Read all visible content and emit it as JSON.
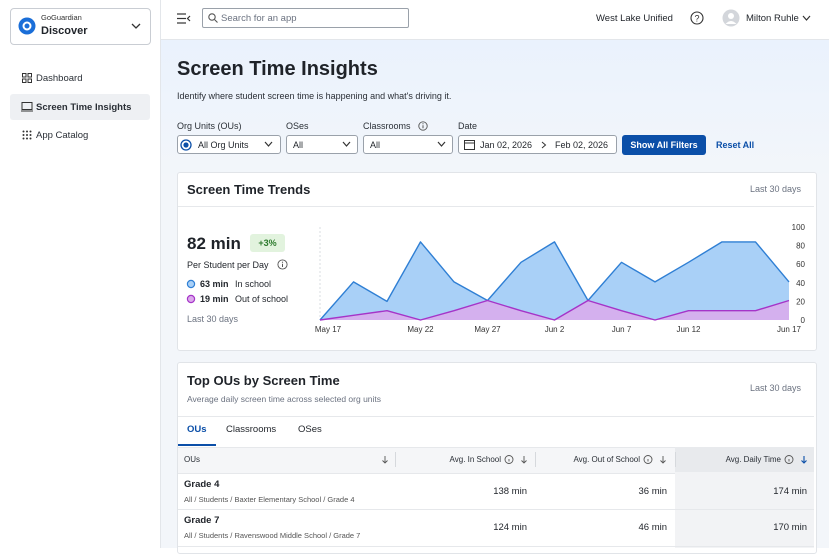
{
  "sidebar": {
    "brand": "GoGuardian",
    "product": "Discover",
    "nav": [
      "Dashboard",
      "Screen Time Insights",
      "App Catalog"
    ]
  },
  "topbar": {
    "search_placeholder": "Search for an app",
    "district": "West Lake Unified",
    "user": "Milton Ruhle"
  },
  "header": {
    "title": "Screen Time Insights",
    "subtitle": "Identify where student screen time is happening and what's driving it."
  },
  "filters": {
    "org_units": {
      "label": "Org Units (OUs)",
      "value": "All Org Units"
    },
    "oses": {
      "label": "OSes",
      "value": "All"
    },
    "classrooms": {
      "label": "Classrooms",
      "value": "All"
    },
    "date": {
      "label": "Date",
      "start": "Jan 02, 2026",
      "end": "Feb 02, 2026"
    },
    "show_all": "Show All Filters",
    "reset": "Reset All"
  },
  "trends": {
    "title": "Screen Time Trends",
    "period": "Last 30 days",
    "total": "82 min",
    "change": "+3%",
    "total_caption": "Per Student per Day",
    "in_school_value": "63 min",
    "out_school_value": "19 min",
    "footer": "Last 30 days"
  },
  "chart_data": {
    "type": "area",
    "categories": [
      "May 17",
      null,
      null,
      "May 22",
      null,
      "May 27",
      null,
      "Jun 2",
      null,
      "Jun 7",
      null,
      "Jun 12",
      null,
      null,
      "Jun 17"
    ],
    "series": [
      {
        "name": "In school",
        "color": "#2f7fd4",
        "fill": "#a9d0f7",
        "values": [
          0,
          41,
          20,
          84,
          41,
          21,
          62,
          84,
          21,
          62,
          41,
          62,
          84,
          84,
          41
        ]
      },
      {
        "name": "Out of school",
        "color": "#a534c8",
        "fill": "#dcaaec",
        "values": [
          0,
          5,
          10,
          0,
          10,
          21,
          10,
          0,
          21,
          10,
          0,
          10,
          10,
          10,
          21
        ]
      }
    ],
    "ylim": [
      0,
      100
    ],
    "yticks": [
      0,
      20,
      40,
      60,
      80,
      100
    ],
    "y_axis_side": "right",
    "grid": false
  },
  "top_ous": {
    "title": "Top OUs by Screen Time",
    "subtitle": "Average daily screen time across selected org units",
    "period": "Last 30 days",
    "tabs": [
      "OUs",
      "Classrooms",
      "OSes"
    ],
    "columns": [
      "OUs",
      "Avg. In School",
      "Avg. Out of School",
      "Avg. Daily Time"
    ],
    "rows": [
      {
        "name": "Grade 4",
        "path": "All / Students / Baxter Elementary School / Grade 4",
        "in_school": "138 min",
        "out_school": "36 min",
        "daily": "174 min"
      },
      {
        "name": "Grade 7",
        "path": "All / Students / Ravenswood Middle School / Grade 7",
        "in_school": "124 min",
        "out_school": "46 min",
        "daily": "170 min"
      }
    ]
  }
}
